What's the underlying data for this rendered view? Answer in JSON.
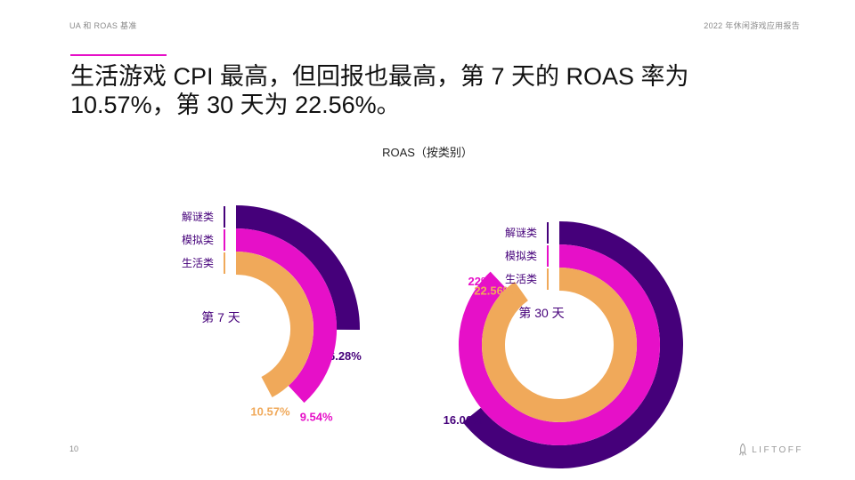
{
  "header": {
    "left": "UA 和 ROAS 基准",
    "right": "2022 年休闲游戏应用报告"
  },
  "headline": "生活游戏 CPI 最高，但回报也最高，第 7 天的 ROAS 率为 10.57%，第 30 天为 22.56%。",
  "footer": {
    "page_number": "10",
    "logo_text": "LIFTOFF"
  },
  "colors": {
    "puzzle": "#45007a",
    "simulation": "#e610c8",
    "lifestyle": "#f0a95a",
    "accent": "#e610c8"
  },
  "chart_data": {
    "type": "radial-bar",
    "title": "ROAS（按类别）",
    "categories": [
      "解谜类",
      "模拟类",
      "生活类"
    ],
    "panels": [
      {
        "label": "第 7 天",
        "series": [
          {
            "name": "解谜类",
            "value": 6.28,
            "label": "6.28%"
          },
          {
            "name": "模拟类",
            "value": 9.54,
            "label": "9.54%"
          },
          {
            "name": "生活类",
            "value": 10.57,
            "label": "10.57%"
          }
        ]
      },
      {
        "label": "第 30 天",
        "series": [
          {
            "name": "解谜类",
            "value": 16.06,
            "label": "16.06%"
          },
          {
            "name": "模拟类",
            "value": 22,
            "label": "22%"
          },
          {
            "name": "生活类",
            "value": 22.56,
            "label": "22.56%"
          }
        ]
      }
    ]
  }
}
